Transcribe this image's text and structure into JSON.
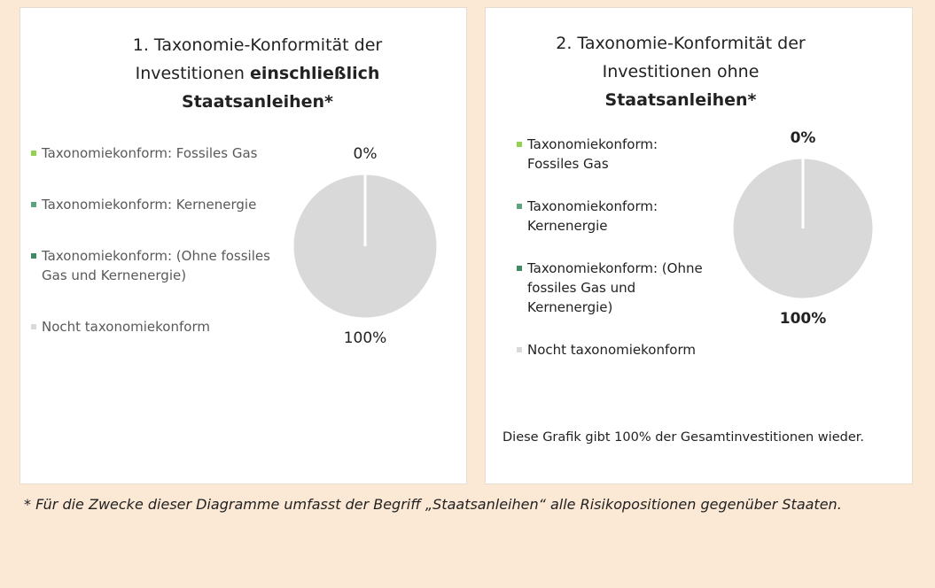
{
  "chart_data": [
    {
      "type": "pie",
      "title": {
        "text": "1. Taxonomie-Konformität der Investitionen",
        "bold": "einschließlich Staatsanleihen*"
      },
      "categories": [
        "Taxonomiekonform: Fossiles Gas",
        "Taxonomiekonform: Kernenergie",
        "Taxonomiekonform: (Ohne fossiles Gas und Kernenergie)",
        "Nocht taxonomiekonform"
      ],
      "values": [
        0,
        0,
        0,
        100
      ],
      "value_labels": [
        "0%",
        null,
        null,
        "100%"
      ],
      "colors": [
        "#92d050",
        "#5fa37e",
        "#3f8a62",
        "#d9d9d9"
      ]
    },
    {
      "type": "pie",
      "title": {
        "text": "2. Taxonomie-Konformität der Investitionen ohne",
        "bold": "Staatsanleihen*"
      },
      "categories": [
        "Taxonomiekonform: Fossiles Gas",
        "Taxonomiekonform: Kernenergie",
        "Taxonomiekonform: (Ohne fossiles Gas und Kernenergie)",
        "Nocht taxonomiekonform"
      ],
      "values": [
        0,
        0,
        0,
        100
      ],
      "value_labels": [
        "0%",
        null,
        null,
        "100%"
      ],
      "colors": [
        "#92d050",
        "#5fa37e",
        "#3f8a62",
        "#d9d9d9"
      ],
      "note": "Diese Grafik gibt 100% der Gesamtinvestitionen wieder."
    }
  ],
  "footnote": {
    "marker": "*",
    "text": "Für die Zwecke dieser Diagramme umfasst der Begriff „Staatsanleihen“ alle Risikopositionen gegenüber Staaten."
  }
}
